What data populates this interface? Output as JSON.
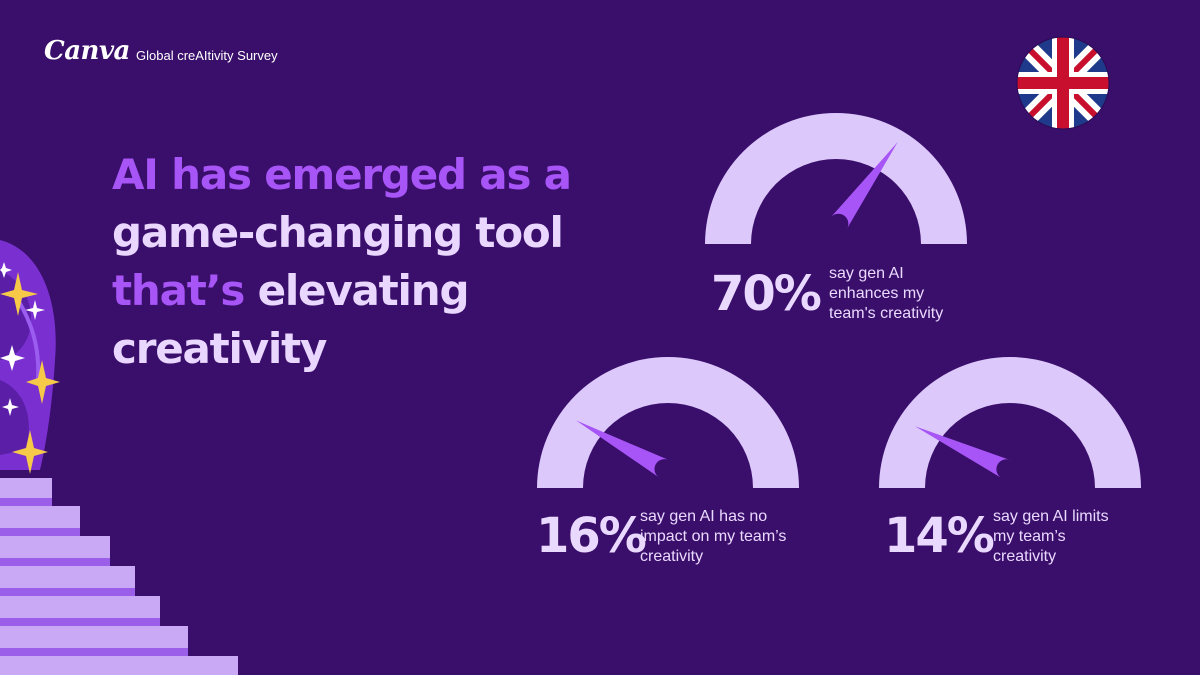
{
  "header": {
    "brand": "Canva",
    "survey_name": "Global creAItivity Survey"
  },
  "headline": {
    "line1": "AI has emerged as a",
    "line2": "game-changing tool",
    "line3_accent": "that’s",
    "line3_rest": " elevating",
    "line4": "creativity"
  },
  "flag": {
    "icon": "union-jack-flag-icon"
  },
  "colors": {
    "background": "#3a0f6b",
    "accent": "#a855f7",
    "gauge_track": "#dcc8fb",
    "needle": "#a855f7",
    "text_light": "#ead9ff"
  },
  "chart_data": {
    "type": "gauge",
    "title": "",
    "unit": "%",
    "range": [
      0,
      100
    ],
    "items": [
      {
        "value": 70,
        "label": "70%",
        "description": "say gen AI enhances my team's creativity",
        "description_lines": [
          "say gen AI",
          "enhances my",
          "team's creativity"
        ]
      },
      {
        "value": 16,
        "label": "16%",
        "description": "say gen AI has no impact on my team’s creativity",
        "description_lines": [
          "say gen AI has no",
          "impact on my team’s",
          "creativity"
        ]
      },
      {
        "value": 14,
        "label": "14%",
        "description": "say gen AI limits my team’s creativity",
        "description_lines": [
          "say gen AI limits",
          "my team’s",
          "creativity"
        ]
      }
    ]
  }
}
